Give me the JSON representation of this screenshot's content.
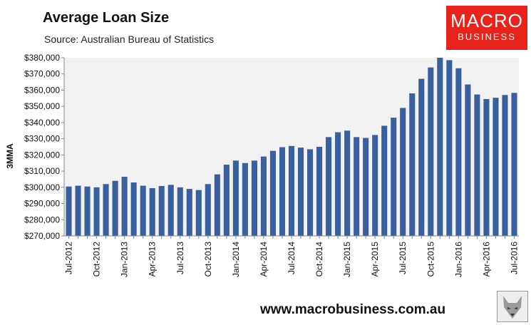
{
  "header": {
    "title": "Average Loan Size",
    "subtitle": "Source: Australian Bureau of Statistics"
  },
  "logo": {
    "main": "MACRO",
    "sub": "BUSINESS",
    "color": "#e8231c"
  },
  "footer": {
    "website": "www.macrobusiness.com.au"
  },
  "chart_data": {
    "type": "bar",
    "title": "Average Loan Size",
    "ylabel": "3MMA",
    "ylim": [
      270000,
      380000
    ],
    "yticks": [
      270000,
      280000,
      290000,
      300000,
      310000,
      320000,
      330000,
      340000,
      350000,
      360000,
      370000,
      380000
    ],
    "ytick_labels": [
      "$270,000",
      "$280,000",
      "$290,000",
      "$300,000",
      "$310,000",
      "$320,000",
      "$330,000",
      "$340,000",
      "$350,000",
      "$360,000",
      "$370,000",
      "$380,000"
    ],
    "bar_color": "#3a5f9e",
    "plot_background": "#f2f2f2",
    "grid": false,
    "categories": [
      "Jul-2012",
      "Aug-2012",
      "Sep-2012",
      "Oct-2012",
      "Nov-2012",
      "Dec-2012",
      "Jan-2013",
      "Feb-2013",
      "Mar-2013",
      "Apr-2013",
      "May-2013",
      "Jun-2013",
      "Jul-2013",
      "Aug-2013",
      "Sep-2013",
      "Oct-2013",
      "Nov-2013",
      "Dec-2013",
      "Jan-2014",
      "Feb-2014",
      "Mar-2014",
      "Apr-2014",
      "May-2014",
      "Jun-2014",
      "Jul-2014",
      "Aug-2014",
      "Sep-2014",
      "Oct-2014",
      "Nov-2014",
      "Dec-2014",
      "Jan-2015",
      "Feb-2015",
      "Mar-2015",
      "Apr-2015",
      "May-2015",
      "Jun-2015",
      "Jul-2015",
      "Aug-2015",
      "Sep-2015",
      "Oct-2015",
      "Nov-2015",
      "Dec-2015",
      "Jan-2016",
      "Feb-2016",
      "Mar-2016",
      "Apr-2016",
      "May-2016",
      "Jun-2016",
      "Jul-2016"
    ],
    "xtick_labels": [
      "Jul-2012",
      "Oct-2012",
      "Jan-2013",
      "Apr-2013",
      "Jul-2013",
      "Oct-2013",
      "Jan-2014",
      "Apr-2014",
      "Jul-2014",
      "Oct-2014",
      "Jan-2015",
      "Apr-2015",
      "Jul-2015",
      "Oct-2015",
      "Jan-2016",
      "Apr-2016",
      "Jul-2016"
    ],
    "values": [
      300500,
      301000,
      300500,
      300000,
      302000,
      304000,
      306500,
      303000,
      301000,
      299500,
      300800,
      301500,
      300000,
      299000,
      298300,
      302000,
      308000,
      314000,
      316500,
      315000,
      316500,
      319000,
      322500,
      324800,
      325500,
      324500,
      323500,
      325000,
      331000,
      334000,
      335000,
      331000,
      330500,
      332300,
      338000,
      343000,
      349000,
      358000,
      367000,
      374000,
      380000,
      378500,
      373500,
      363500,
      357300,
      354500,
      355300,
      357000,
      358300
    ]
  }
}
